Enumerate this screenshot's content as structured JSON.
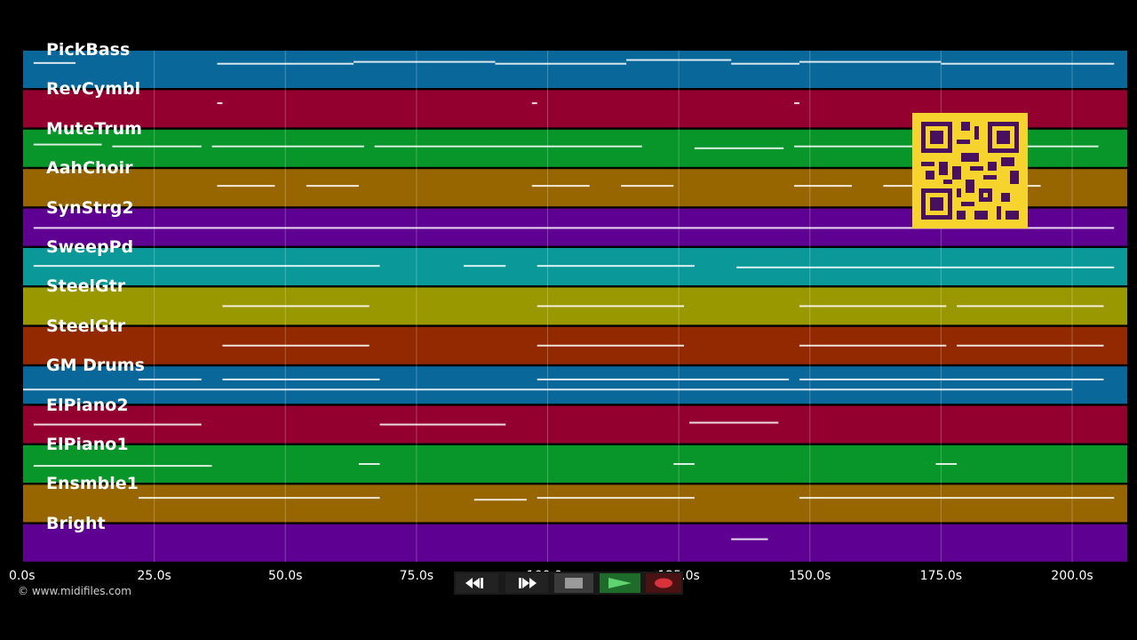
{
  "tracks": [
    {
      "name": "PickBass",
      "color": "#0a6799"
    },
    {
      "name": "RevCymbl",
      "color": "#93002f"
    },
    {
      "name": "MuteTrum",
      "color": "#089529"
    },
    {
      "name": "AahChoir",
      "color": "#976600"
    },
    {
      "name": "SynStrg2",
      "color": "#5e0092"
    },
    {
      "name": "SweepPd",
      "color": "#0b9898"
    },
    {
      "name": "SteelGtr",
      "color": "#9a9800"
    },
    {
      "name": "SteelGtr",
      "color": "#922900"
    },
    {
      "name": "GM Drums",
      "color": "#0a6799"
    },
    {
      "name": "ElPiano2",
      "color": "#93002f"
    },
    {
      "name": "ElPiano1",
      "color": "#089529"
    },
    {
      "name": "Ensmble1",
      "color": "#976600"
    },
    {
      "name": "Bright",
      "color": "#5e0092"
    }
  ],
  "time_axis": {
    "ticks": [
      {
        "seconds": 0,
        "label": "0.0s"
      },
      {
        "seconds": 25,
        "label": "25.0s"
      },
      {
        "seconds": 50,
        "label": "50.0s"
      },
      {
        "seconds": 75,
        "label": "75.0s"
      },
      {
        "seconds": 100,
        "label": "100.0s"
      },
      {
        "seconds": 125,
        "label": "125.0s"
      },
      {
        "seconds": 150,
        "label": "150.0s"
      },
      {
        "seconds": 175,
        "label": "175.0s"
      },
      {
        "seconds": 200,
        "label": "200.0s"
      }
    ],
    "range_seconds": [
      0,
      210.5
    ],
    "grid": true
  },
  "notes": [
    [
      [
        2,
        10,
        0.33
      ],
      [
        37,
        63,
        0.35
      ],
      [
        63,
        90,
        0.3
      ],
      [
        90,
        115,
        0.35
      ],
      [
        115,
        135,
        0.25
      ],
      [
        135,
        148,
        0.35
      ],
      [
        148,
        175,
        0.3
      ],
      [
        175,
        208,
        0.35
      ]
    ],
    [
      [
        37,
        38,
        0.35
      ],
      [
        97,
        98,
        0.35
      ],
      [
        147,
        148,
        0.35
      ]
    ],
    [
      [
        2,
        15,
        0.4
      ],
      [
        17,
        34,
        0.45
      ],
      [
        36,
        65,
        0.45
      ],
      [
        67,
        90,
        0.45
      ],
      [
        90,
        118,
        0.45
      ],
      [
        128,
        145,
        0.5
      ],
      [
        147,
        178,
        0.45
      ],
      [
        180,
        205,
        0.45
      ]
    ],
    [
      [
        37,
        48,
        0.45
      ],
      [
        54,
        64,
        0.45
      ],
      [
        97,
        108,
        0.45
      ],
      [
        114,
        124,
        0.45
      ],
      [
        147,
        158,
        0.45
      ],
      [
        164,
        172,
        0.45
      ],
      [
        184,
        194,
        0.45
      ]
    ],
    [
      [
        2,
        208,
        0.52
      ]
    ],
    [
      [
        2,
        68,
        0.48
      ],
      [
        84,
        92,
        0.48
      ],
      [
        98,
        128,
        0.48
      ],
      [
        136,
        208,
        0.52
      ]
    ],
    [
      [
        38,
        66,
        0.5
      ],
      [
        98,
        126,
        0.5
      ],
      [
        148,
        176,
        0.5
      ],
      [
        178,
        206,
        0.5
      ]
    ],
    [
      [
        38,
        66,
        0.5
      ],
      [
        98,
        126,
        0.5
      ],
      [
        148,
        176,
        0.5
      ],
      [
        178,
        206,
        0.5
      ]
    ],
    [
      [
        0,
        100,
        0.62
      ],
      [
        100,
        200,
        0.62
      ],
      [
        22,
        34,
        0.35
      ],
      [
        38,
        68,
        0.35
      ],
      [
        98,
        146,
        0.35
      ],
      [
        148,
        206,
        0.35
      ]
    ],
    [
      [
        2,
        34,
        0.5
      ],
      [
        68,
        92,
        0.5
      ],
      [
        127,
        144,
        0.45
      ]
    ],
    [
      [
        2,
        36,
        0.55
      ],
      [
        64,
        68,
        0.5
      ],
      [
        124,
        128,
        0.5
      ],
      [
        174,
        178,
        0.5
      ]
    ],
    [
      [
        22,
        68,
        0.35
      ],
      [
        86,
        96,
        0.4
      ],
      [
        98,
        128,
        0.35
      ],
      [
        148,
        208,
        0.35
      ]
    ],
    [
      [
        135,
        142,
        0.4
      ]
    ]
  ],
  "copyright": "© www.midifiles.com",
  "transport": {
    "rewind": "rewind-icon",
    "fast_forward": "fast-forward-icon",
    "stop": "stop-icon",
    "play": "play-icon",
    "record": "record-icon"
  },
  "qr_icon": "qr-code-icon"
}
